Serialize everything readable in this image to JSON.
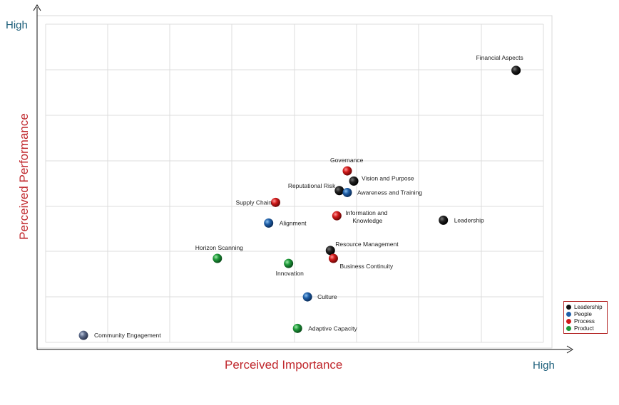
{
  "chart_data": {
    "type": "scatter",
    "xlabel": "Perceived Importance",
    "ylabel": "Perceived Performance",
    "x_high_label": "High",
    "y_high_label": "High",
    "xlim": [
      0,
      10
    ],
    "ylim": [
      0,
      10
    ],
    "grid": true,
    "legend_position": "bottom-right",
    "colors": {
      "Leadership": "#111111",
      "People": "#1f5fa8",
      "Process": "#d11a1a",
      "Product": "#1e9a3a",
      "Unassigned": "#5d6b8a"
    },
    "legend": [
      "Leadership",
      "People",
      "Process",
      "Product"
    ],
    "points": [
      {
        "label": "Financial Aspects",
        "category": "Leadership",
        "x": 9.45,
        "y": 8.55
      },
      {
        "label": "Governance",
        "category": "Process",
        "x": 6.06,
        "y": 5.39
      },
      {
        "label": "Vision and Purpose",
        "category": "Leadership",
        "x": 6.19,
        "y": 5.07
      },
      {
        "label": "Reputational Risk",
        "category": "Leadership",
        "x": 5.9,
        "y": 4.77
      },
      {
        "label": "Awareness and Training",
        "category": "People",
        "x": 6.06,
        "y": 4.71
      },
      {
        "label": "Supply Chain",
        "category": "Process",
        "x": 4.62,
        "y": 4.4
      },
      {
        "label": "Information and Knowledge",
        "category": "Process",
        "x": 5.85,
        "y": 3.98
      },
      {
        "label": "Alignment",
        "category": "People",
        "x": 4.48,
        "y": 3.75
      },
      {
        "label": "Leadership",
        "category": "Leadership",
        "x": 7.99,
        "y": 3.84
      },
      {
        "label": "Resource Management",
        "category": "Leadership",
        "x": 5.72,
        "y": 2.89
      },
      {
        "label": "Business Continuity",
        "category": "Process",
        "x": 5.78,
        "y": 2.64
      },
      {
        "label": "Horizon Scanning",
        "category": "Product",
        "x": 3.45,
        "y": 2.64
      },
      {
        "label": "Innovation",
        "category": "Product",
        "x": 4.88,
        "y": 2.48
      },
      {
        "label": "Culture",
        "category": "People",
        "x": 5.26,
        "y": 1.43
      },
      {
        "label": "Adaptive Capacity",
        "category": "Product",
        "x": 5.06,
        "y": 0.44
      },
      {
        "label": "Community Engagement",
        "category": "Unassigned",
        "x": 0.76,
        "y": 0.22
      }
    ]
  }
}
